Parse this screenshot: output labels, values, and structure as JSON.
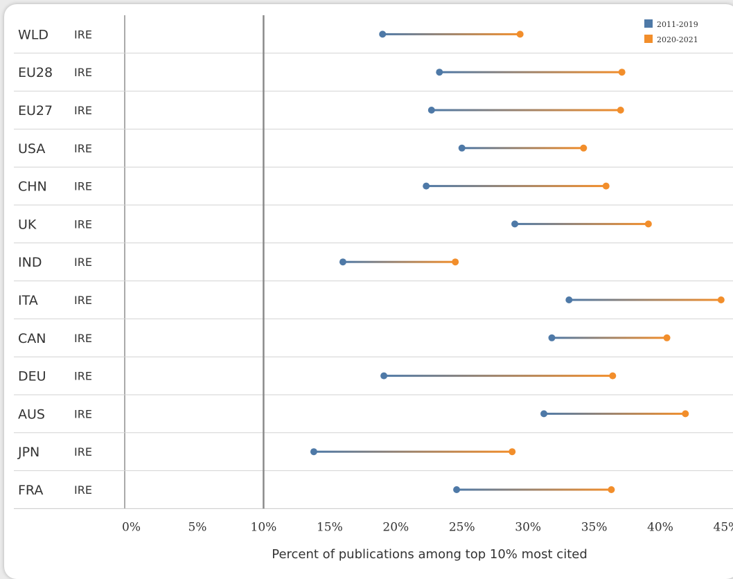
{
  "chart_data": {
    "type": "dumbbell",
    "title": "",
    "xlabel": "Percent of publications among top 10% most cited",
    "ylabel": "",
    "xlim": [
      -0.5,
      45.5
    ],
    "reference_line": 10,
    "x_ticks": [
      "0%",
      "5%",
      "10%",
      "15%",
      "20%",
      "25%",
      "30%",
      "35%",
      "40%",
      "45%"
    ],
    "x_tick_values": [
      0,
      5,
      10,
      15,
      20,
      25,
      30,
      35,
      40,
      45
    ],
    "legend": [
      {
        "label": "2011-2019",
        "color": "#4e79a7"
      },
      {
        "label": "2020-2021",
        "color": "#f28e2b"
      }
    ],
    "rows": [
      {
        "region": "WLD",
        "country": "IRE",
        "v2011_2019": 19.0,
        "v2020_2021": 29.4
      },
      {
        "region": "EU28",
        "country": "IRE",
        "v2011_2019": 23.3,
        "v2020_2021": 37.1
      },
      {
        "region": "EU27",
        "country": "IRE",
        "v2011_2019": 22.7,
        "v2020_2021": 37.0
      },
      {
        "region": "USA",
        "country": "IRE",
        "v2011_2019": 25.0,
        "v2020_2021": 34.2
      },
      {
        "region": "CHN",
        "country": "IRE",
        "v2011_2019": 22.3,
        "v2020_2021": 35.9
      },
      {
        "region": "UK",
        "country": "IRE",
        "v2011_2019": 29.0,
        "v2020_2021": 39.1
      },
      {
        "region": "IND",
        "country": "IRE",
        "v2011_2019": 16.0,
        "v2020_2021": 24.5
      },
      {
        "region": "ITA",
        "country": "IRE",
        "v2011_2019": 33.1,
        "v2020_2021": 44.6
      },
      {
        "region": "CAN",
        "country": "IRE",
        "v2011_2019": 31.8,
        "v2020_2021": 40.5
      },
      {
        "region": "DEU",
        "country": "IRE",
        "v2011_2019": 19.1,
        "v2020_2021": 36.4
      },
      {
        "region": "AUS",
        "country": "IRE",
        "v2011_2019": 31.2,
        "v2020_2021": 41.9
      },
      {
        "region": "JPN",
        "country": "IRE",
        "v2011_2019": 13.8,
        "v2020_2021": 28.8
      },
      {
        "region": "FRA",
        "country": "IRE",
        "v2011_2019": 24.6,
        "v2020_2021": 36.3
      }
    ]
  }
}
